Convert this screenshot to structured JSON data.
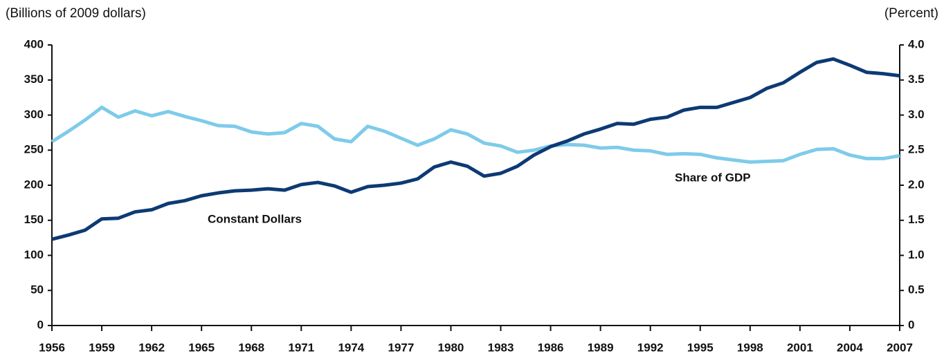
{
  "chart_data": {
    "type": "line",
    "ylabel": "(Billions of 2009 dollars)",
    "y2label": "(Percent)",
    "x": [
      1956,
      1957,
      1958,
      1959,
      1960,
      1961,
      1962,
      1963,
      1964,
      1965,
      1966,
      1967,
      1968,
      1969,
      1970,
      1971,
      1972,
      1973,
      1974,
      1975,
      1976,
      1977,
      1978,
      1979,
      1980,
      1981,
      1982,
      1983,
      1984,
      1985,
      1986,
      1987,
      1988,
      1989,
      1990,
      1991,
      1992,
      1993,
      1994,
      1995,
      1996,
      1997,
      1998,
      1999,
      2000,
      2001,
      2002,
      2003,
      2004,
      2005,
      2006,
      2007
    ],
    "series": [
      {
        "name": "Constant Dollars",
        "color": "#0d3a74",
        "values": [
          123,
          129,
          136,
          152,
          153,
          162,
          165,
          174,
          178,
          185,
          189,
          192,
          193,
          195,
          193,
          201,
          204,
          199,
          190,
          198,
          200,
          203,
          209,
          226,
          233,
          227,
          213,
          217,
          227,
          243,
          255,
          263,
          273,
          280,
          288,
          287,
          294,
          297,
          307,
          311,
          311,
          318,
          325,
          338,
          346,
          361,
          375,
          380,
          371,
          361,
          359,
          356
        ]
      },
      {
        "name": "Share of GDP",
        "color": "#7ecbea",
        "axis": "y2",
        "values": [
          2.62,
          2.77,
          2.93,
          3.11,
          2.97,
          3.06,
          2.99,
          3.05,
          2.98,
          2.92,
          2.85,
          2.84,
          2.76,
          2.73,
          2.75,
          2.88,
          2.84,
          2.66,
          2.62,
          2.84,
          2.77,
          2.67,
          2.57,
          2.66,
          2.79,
          2.73,
          2.6,
          2.56,
          2.47,
          2.5,
          2.56,
          2.58,
          2.57,
          2.53,
          2.54,
          2.5,
          2.49,
          2.44,
          2.45,
          2.44,
          2.39,
          2.36,
          2.33,
          2.34,
          2.35,
          2.44,
          2.51,
          2.52,
          2.43,
          2.38,
          2.38,
          2.42
        ]
      }
    ],
    "xlim": [
      1956,
      2007
    ],
    "xticks": [
      1956,
      1959,
      1962,
      1965,
      1968,
      1971,
      1974,
      1977,
      1980,
      1983,
      1986,
      1989,
      1992,
      1995,
      1998,
      2001,
      2004,
      2007
    ],
    "ylim": [
      0,
      400
    ],
    "yticks": [
      0,
      50,
      100,
      150,
      200,
      250,
      300,
      350,
      400
    ],
    "y2lim": [
      0,
      4
    ],
    "y2ticks": [
      0,
      0.5,
      {
        "value": 1,
        "label": "1.0"
      },
      1.5,
      {
        "value": 2,
        "label": "2.0"
      },
      2.5,
      {
        "value": 3,
        "label": "3.0"
      },
      3.5,
      {
        "value": 4,
        "label": "4.0"
      }
    ]
  }
}
